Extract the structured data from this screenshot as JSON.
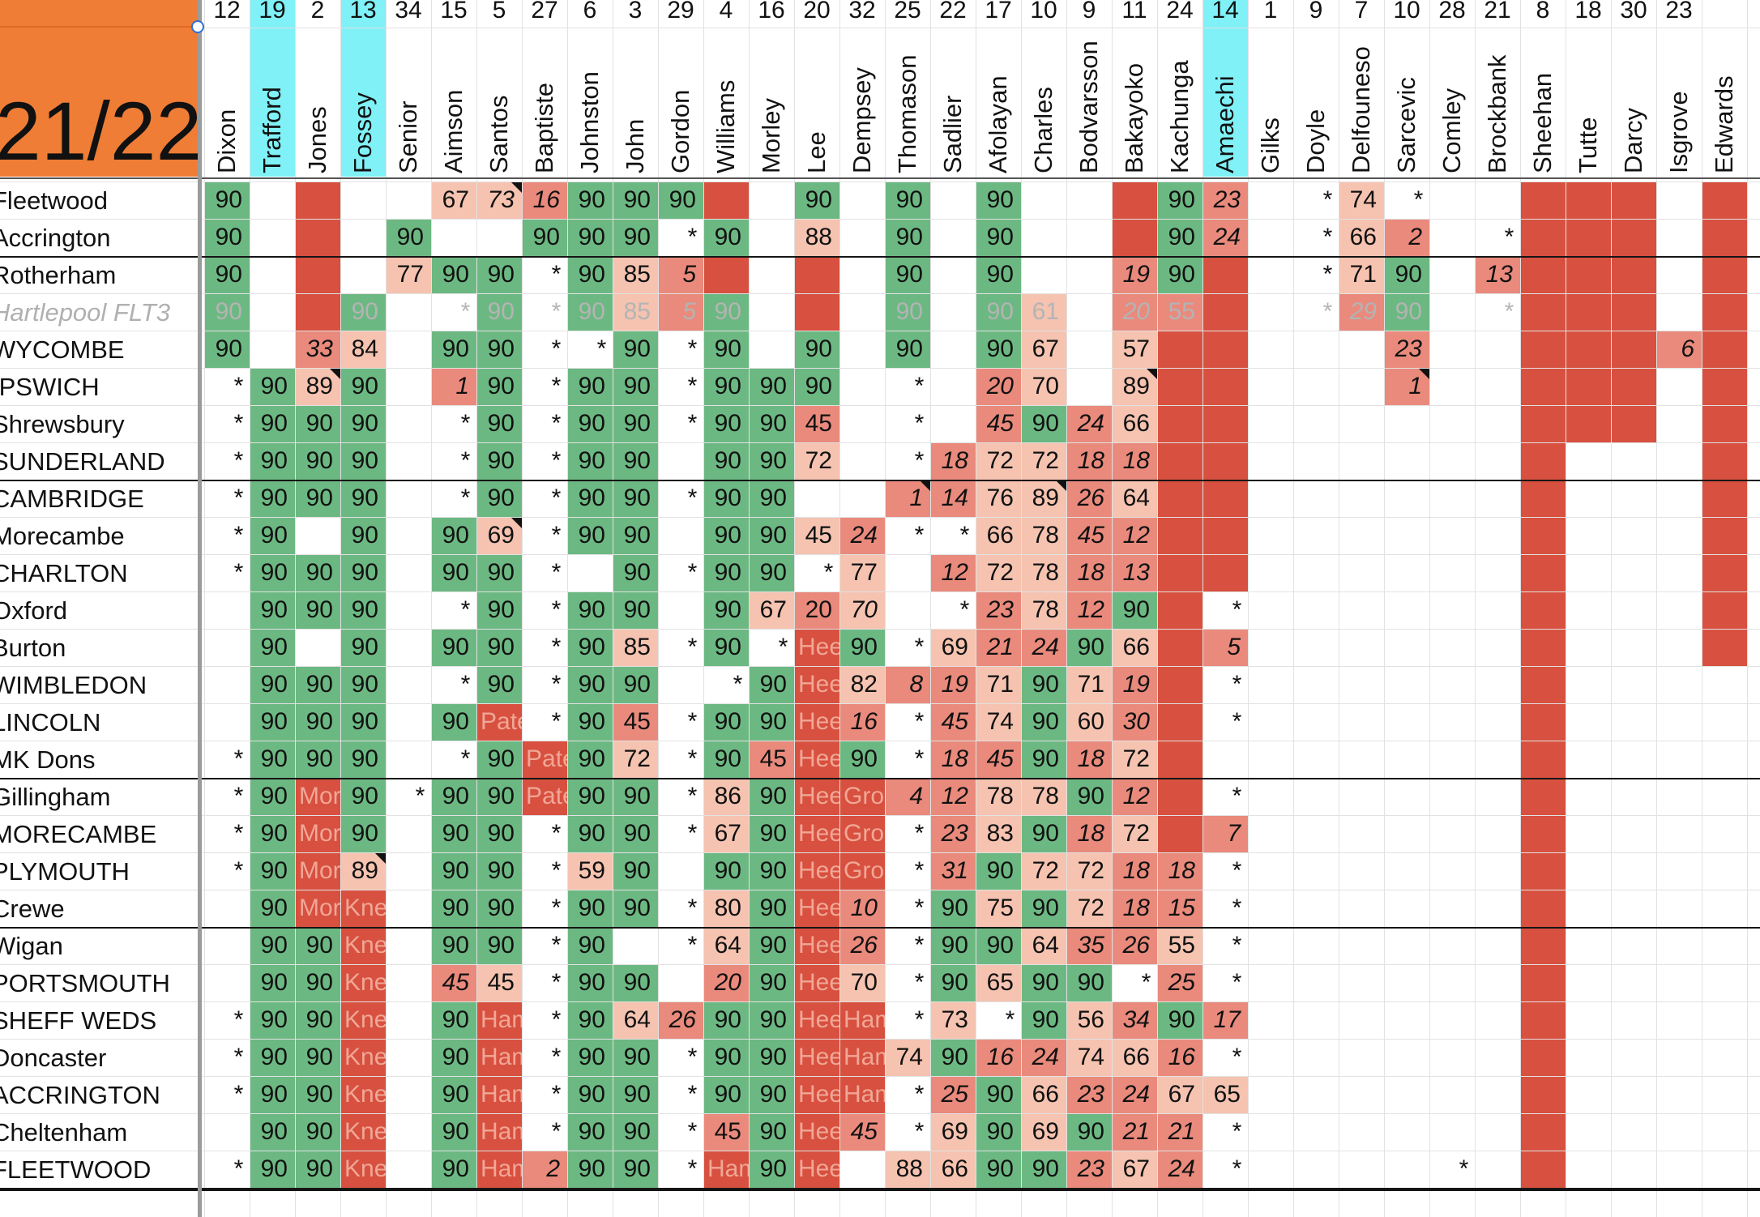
{
  "season_label": "21/22",
  "colors": {
    "green": "#6cb882",
    "red": "#d8503f",
    "pink": "#e98a7c",
    "peach": "#f5c3b0",
    "cream": "#f9e1d3",
    "cyan": "#7ff1f7",
    "orange": "#ef7d35"
  },
  "players": [
    {
      "num": "12",
      "name": "Dixon"
    },
    {
      "num": "19",
      "name": "Trafford"
    },
    {
      "num": "2",
      "name": "Jones"
    },
    {
      "num": "13",
      "name": "Fossey"
    },
    {
      "num": "34",
      "name": "Senior"
    },
    {
      "num": "15",
      "name": "Aimson"
    },
    {
      "num": "5",
      "name": "Santos"
    },
    {
      "num": "27",
      "name": "Baptiste"
    },
    {
      "num": "6",
      "name": "Johnston"
    },
    {
      "num": "3",
      "name": "John"
    },
    {
      "num": "29",
      "name": "Gordon"
    },
    {
      "num": "4",
      "name": "Williams"
    },
    {
      "num": "16",
      "name": "Morley"
    },
    {
      "num": "20",
      "name": "Lee"
    },
    {
      "num": "32",
      "name": "Dempsey"
    },
    {
      "num": "25",
      "name": "Thomason"
    },
    {
      "num": "22",
      "name": "Sadlier"
    },
    {
      "num": "17",
      "name": "Afolayan"
    },
    {
      "num": "10",
      "name": "Charles"
    },
    {
      "num": "9",
      "name": "Bodvarsson"
    },
    {
      "num": "11",
      "name": "Bakayoko"
    },
    {
      "num": "24",
      "name": "Kachunga"
    },
    {
      "num": "14",
      "name": "Amaechi"
    },
    {
      "num": "1",
      "name": "Gilks"
    },
    {
      "num": "9",
      "name": "Doyle"
    },
    {
      "num": "7",
      "name": "Delfouneso"
    },
    {
      "num": "10",
      "name": "Sarcevic"
    },
    {
      "num": "28",
      "name": "Comley"
    },
    {
      "num": "21",
      "name": "Brockbank"
    },
    {
      "num": "8",
      "name": "Sheehan"
    },
    {
      "num": "18",
      "name": "Tutte"
    },
    {
      "num": "30",
      "name": "Darcy"
    },
    {
      "num": "23",
      "name": "Isgrove"
    },
    {
      "num": "",
      "name": "Edwards"
    }
  ],
  "highlighted_columns": [
    1,
    3,
    22
  ],
  "opponents": [
    "Fleetwood",
    "Accrington",
    "Rotherham",
    "Hartlepool FLT3",
    "WYCOMBE",
    "IPSWICH",
    "Shrewsbury",
    "SUNDERLAND",
    "CAMBRIDGE",
    "Morecambe",
    "CHARLTON",
    "Oxford",
    "Burton",
    "WIMBLEDON",
    "LINCOLN",
    "MK Dons",
    "Gillingham",
    "MORECAMBE",
    "PLYMOUTH",
    "Crewe",
    "Wigan",
    "PORTSMOUTH",
    "SHEFF WEDS",
    "Doncaster",
    "ACCRINGTON",
    "Cheltenham",
    "FLEETWOOD"
  ],
  "grayed_rows": [
    3
  ],
  "rows": [
    [
      "G:90",
      "",
      "R",
      "",
      "",
      "C:67",
      "C:73:it:tri",
      "P:16:it",
      "G:90",
      "G:90",
      "G:90",
      "R",
      "",
      "G:90",
      "",
      "G:90",
      "",
      "G:90",
      "",
      "",
      "R",
      "G:90",
      "P:23:it",
      "",
      "*:it",
      "C:74",
      "*:it",
      "",
      "",
      "R",
      "R",
      "R",
      "",
      "R",
      ""
    ],
    [
      "G:90",
      "",
      "R",
      "",
      "G:90",
      "",
      "",
      "G:90",
      "G:90",
      "G:90",
      "*:it",
      "G:90",
      "",
      "C:88",
      "",
      "G:90",
      "",
      "G:90",
      "",
      "",
      "R",
      "G:90",
      "P:24:it",
      "",
      "*:it",
      "C:66",
      "P:2:it",
      "",
      "*:it",
      "R",
      "R",
      "R",
      "",
      "R",
      ""
    ],
    [
      "G:90",
      "",
      "R",
      "",
      "C:77",
      "G:90",
      "G:90",
      "*:it",
      "G:90",
      "C:85",
      "P:5:it",
      "R",
      "",
      "R",
      "",
      "G:90",
      "",
      "G:90",
      "",
      "",
      "P:19:it",
      "G:90",
      "R",
      "",
      "*:it",
      "C:71",
      "G:90",
      "",
      "P:13:it",
      "R",
      "R",
      "R",
      "",
      "R",
      ""
    ],
    [
      "G:90",
      "",
      "R",
      "G:90",
      "",
      "*:it",
      "G:90",
      "*:it",
      "G:90",
      "C:85",
      "P:5:it",
      "G:90",
      "",
      "R",
      "",
      "G:90",
      "",
      "G:90",
      "C:61",
      "",
      "P:20:it",
      "P:55",
      "R",
      "",
      "*:it",
      "P:29:it",
      "G:90",
      "",
      "*:it",
      "R",
      "R",
      "R",
      "",
      "R",
      ""
    ],
    [
      "G:90",
      "",
      "P:33:it",
      "C:84",
      "",
      "G:90",
      "G:90",
      "*:it",
      "*:it",
      "G:90",
      "*:it",
      "G:90",
      "",
      "G:90",
      "",
      "G:90",
      "",
      "G:90",
      "C:67",
      "",
      "C:57",
      "R",
      "R",
      "",
      "",
      "",
      "P:23:it",
      "",
      "",
      "R",
      "R",
      "R",
      "P:6:it",
      "R",
      ""
    ],
    [
      "*:it",
      "G:90",
      "C:89:tri",
      "G:90",
      "",
      "P:1:it",
      "G:90",
      "*:it",
      "G:90",
      "G:90",
      "*:it",
      "G:90",
      "G:90",
      "G:90",
      "",
      "*:it",
      "",
      "P:20:it",
      "C:70",
      "",
      "C:89:tri",
      "R",
      "R",
      "",
      "",
      "",
      "P:1:it:tri",
      "",
      "",
      "R",
      "R",
      "R",
      "",
      "R",
      ""
    ],
    [
      "*:it",
      "G:90",
      "G:90",
      "G:90",
      "",
      "*:it",
      "G:90",
      "*:it",
      "G:90",
      "G:90",
      "*:it",
      "G:90",
      "G:90",
      "P:45",
      "",
      "*:it",
      "",
      "P:45:it",
      "G:90",
      "P:24:it",
      "C:66",
      "R",
      "R",
      "",
      "",
      "",
      "",
      "",
      "",
      "R",
      "R",
      "R",
      "",
      "R",
      ""
    ],
    [
      "*:it",
      "G:90",
      "G:90",
      "G:90",
      "",
      "*:it",
      "G:90",
      "*:it",
      "G:90",
      "G:90",
      "",
      "G:90",
      "G:90",
      "C:72",
      "",
      "*:it",
      "P:18:it",
      "C:72",
      "C:72",
      "P:18:it",
      "P:18:it",
      "R",
      "R",
      "",
      "",
      "",
      "",
      "",
      "",
      "R",
      "",
      "",
      "",
      "R",
      ""
    ],
    [
      "*:it",
      "G:90",
      "G:90",
      "G:90",
      "",
      "*:it",
      "G:90",
      "*:it",
      "G:90",
      "G:90",
      "*:it",
      "G:90",
      "G:90",
      "",
      "",
      "P:1:it:tri",
      "P:14:it",
      "C:76",
      "C:89:tri",
      "P:26:it",
      "C:64",
      "R",
      "R",
      "",
      "",
      "",
      "",
      "",
      "",
      "R",
      "",
      "",
      "",
      "R",
      ""
    ],
    [
      "*:it",
      "G:90",
      "",
      "G:90",
      "",
      "G:90",
      "C:69:tri",
      "*:it",
      "G:90",
      "G:90",
      "",
      "G:90",
      "G:90",
      "C:45",
      "P:24:it",
      "*:it",
      "*:it",
      "C:66",
      "C:78",
      "P:45:it",
      "P:12:it",
      "R",
      "R",
      "",
      "",
      "",
      "",
      "",
      "",
      "R",
      "",
      "",
      "",
      "R",
      ""
    ],
    [
      "*:it",
      "G:90",
      "G:90",
      "G:90",
      "",
      "G:90",
      "G:90",
      "*:it",
      "",
      "G:90",
      "*:it",
      "G:90",
      "G:90",
      "*:it",
      "C:77",
      "",
      "P:12:it",
      "C:72",
      "C:78",
      "P:18:it",
      "P:13:it",
      "R",
      "R",
      "",
      "",
      "",
      "",
      "",
      "",
      "R",
      "",
      "",
      "",
      "R",
      ""
    ],
    [
      "",
      "G:90",
      "G:90",
      "G:90",
      "",
      "*:it",
      "G:90",
      "*:it",
      "G:90",
      "G:90",
      "",
      "G:90",
      "C:67",
      "P:20",
      "C:70:it",
      "",
      "*:it",
      "P:23:it",
      "C:78",
      "P:12:it",
      "G:90",
      "R",
      "*:it",
      "",
      "",
      "",
      "",
      "",
      "",
      "R",
      "",
      "",
      "",
      "R",
      ""
    ],
    [
      "",
      "G:90",
      "",
      "G:90",
      "",
      "G:90",
      "G:90",
      "*:it",
      "G:90",
      "C:85",
      "*:it",
      "G:90",
      "*:it",
      "R:Heel",
      "G:90",
      "*:it",
      "C:69",
      "P:21:it",
      "P:24:it",
      "G:90",
      "C:66",
      "R",
      "P:5:it",
      "",
      "",
      "",
      "",
      "",
      "",
      "R",
      "",
      "",
      "",
      "R",
      ""
    ],
    [
      "",
      "G:90",
      "G:90",
      "G:90",
      "",
      "*:it",
      "G:90",
      "*:it",
      "G:90",
      "G:90",
      "",
      "*:it",
      "G:90",
      "R:Heel",
      "C:82",
      "P:8:it",
      "P:19:it",
      "C:71",
      "G:90",
      "C:71",
      "P:19:it",
      "R",
      "*:it",
      "",
      "",
      "",
      "",
      "",
      "",
      "R",
      "",
      "",
      "",
      "",
      ""
    ],
    [
      "",
      "G:90",
      "G:90",
      "G:90",
      "",
      "G:90",
      "R:Patella",
      "*:it",
      "G:90",
      "P:45",
      "*:it",
      "G:90",
      "G:90",
      "R:Heel",
      "P:16:it",
      "*:it",
      "P:45:it",
      "C:74",
      "G:90",
      "C:60",
      "P:30:it",
      "R",
      "*:it",
      "",
      "",
      "",
      "",
      "",
      "",
      "R",
      "",
      "",
      "",
      "",
      ""
    ],
    [
      "*:it",
      "G:90",
      "G:90",
      "G:90",
      "",
      "*:it",
      "G:90",
      "R:Patella",
      "G:90",
      "C:72",
      "*:it",
      "G:90",
      "P:45",
      "R:Heel",
      "G:90",
      "*:it",
      "P:18:it",
      "P:45:it",
      "G:90",
      "P:18:it",
      "C:72",
      "R",
      "",
      "",
      "",
      "",
      "",
      "",
      "",
      "R",
      "",
      "",
      "",
      "",
      ""
    ],
    [
      "*:it",
      "G:90",
      "R:Morley",
      "G:90",
      "*:it",
      "G:90",
      "G:90",
      "R:Patella",
      "G:90",
      "G:90",
      "*:it",
      "C:86",
      "G:90",
      "R:Heel",
      "R:Groin",
      "P:4:it",
      "P:12:it",
      "C:78",
      "C:78",
      "G:90",
      "P:12:it",
      "R",
      "*:it",
      "",
      "",
      "",
      "",
      "",
      "",
      "R",
      "",
      "",
      "",
      "",
      ""
    ],
    [
      "*:it",
      "G:90",
      "R:Morley",
      "G:90",
      "",
      "G:90",
      "G:90",
      "*:it",
      "G:90",
      "G:90",
      "*:it",
      "C:67",
      "G:90",
      "R:Heel",
      "R:Groin",
      "*:it",
      "P:23:it",
      "C:83",
      "G:90",
      "P:18:it",
      "C:72",
      "R",
      "P:7:it",
      "",
      "",
      "",
      "",
      "",
      "",
      "R",
      "",
      "",
      "",
      "",
      ""
    ],
    [
      "*:it",
      "G:90",
      "R:Morley",
      "C:89:tri",
      "",
      "G:90",
      "G:90",
      "*:it",
      "C:59",
      "G:90",
      "",
      "G:90",
      "G:90",
      "R:Heel",
      "R:Groin",
      "*:it",
      "P:31:it",
      "G:90",
      "C:72",
      "C:72",
      "P:18:it",
      "P:18:it",
      "*:it",
      "",
      "",
      "",
      "",
      "",
      "",
      "R",
      "",
      "",
      "",
      "",
      ""
    ],
    [
      "",
      "G:90",
      "R:Morley",
      "R:Knee",
      "",
      "G:90",
      "G:90",
      "*:it",
      "G:90",
      "G:90",
      "*:it",
      "C:80",
      "G:90",
      "R:Heel",
      "P:10:it",
      "*:it",
      "G:90",
      "C:75",
      "G:90",
      "C:72",
      "P:18:it",
      "P:15:it",
      "*:it",
      "",
      "",
      "",
      "",
      "",
      "",
      "R",
      "",
      "",
      "",
      "",
      ""
    ],
    [
      "",
      "G:90",
      "G:90",
      "R:Knee",
      "",
      "G:90",
      "G:90",
      "*:it",
      "G:90",
      "",
      "*:it",
      "C:64",
      "G:90",
      "R:Heel",
      "P:26:it",
      "*:it",
      "G:90",
      "G:90",
      "C:64",
      "P:35:it",
      "P:26:it",
      "C:55",
      "*:it",
      "",
      "",
      "",
      "",
      "",
      "",
      "R",
      "",
      "",
      "",
      "",
      ""
    ],
    [
      "",
      "G:90",
      "G:90",
      "R:Knee",
      "",
      "P:45:it",
      "C:45",
      "*:it",
      "G:90",
      "G:90",
      "",
      "P:20:it",
      "G:90",
      "R:Heel",
      "C:70",
      "*:it",
      "G:90",
      "C:65",
      "G:90",
      "G:90",
      "*:it",
      "P:25:it",
      "*:it",
      "",
      "",
      "",
      "",
      "",
      "",
      "R",
      "",
      "",
      "",
      "",
      ""
    ],
    [
      "*:it",
      "G:90",
      "G:90",
      "R:Knee",
      "",
      "G:90",
      "R:Hamstring",
      "*:it",
      "G:90",
      "C:64",
      "P:26:it",
      "G:90",
      "G:90",
      "R:Heel",
      "R:Hamstring",
      "*:it",
      "C:73",
      "*:it",
      "G:90",
      "C:56",
      "P:34:it",
      "G:90",
      "P:17:it",
      "",
      "",
      "",
      "",
      "",
      "",
      "R",
      "",
      "",
      "",
      "",
      ""
    ],
    [
      "*:it",
      "G:90",
      "G:90",
      "R:Knee",
      "",
      "G:90",
      "R:Hamstring",
      "*:it",
      "G:90",
      "G:90",
      "*:it",
      "G:90",
      "G:90",
      "R:Heel",
      "R:Hamstring",
      "C:74",
      "G:90",
      "P:16:it",
      "P:24:it",
      "C:74",
      "C:66",
      "P:16:it",
      "*:it",
      "",
      "",
      "",
      "",
      "",
      "",
      "R",
      "",
      "",
      "",
      "",
      ""
    ],
    [
      "*:it",
      "G:90",
      "G:90",
      "R:Knee",
      "",
      "G:90",
      "R:Hamstring",
      "*:it",
      "G:90",
      "G:90",
      "*:it",
      "G:90",
      "G:90",
      "R:Heel",
      "R:Hamstring",
      "*:it",
      "P:25:it",
      "G:90",
      "C:66",
      "P:23:it",
      "P:24:it",
      "C:67",
      "C:65",
      "",
      "",
      "",
      "",
      "",
      "",
      "R",
      "",
      "",
      "",
      "",
      ""
    ],
    [
      "",
      "G:90",
      "G:90",
      "R:Knee",
      "",
      "G:90",
      "R:Hamstring",
      "*:it",
      "G:90",
      "G:90",
      "*:it",
      "P:45",
      "G:90",
      "R:Heel",
      "P:45:it",
      "*:it",
      "C:69",
      "G:90",
      "C:69",
      "G:90",
      "P:21:it",
      "P:21:it",
      "*:it",
      "",
      "",
      "",
      "",
      "",
      "",
      "R",
      "",
      "",
      "",
      "",
      ""
    ],
    [
      "*:it",
      "G:90",
      "G:90",
      "R:Knee",
      "",
      "G:90",
      "R:Hamstring",
      "P:2:it",
      "G:90",
      "G:90",
      "*:it",
      "R:Hamstring",
      "G:90",
      "R:Heel",
      "",
      "C:88",
      "C:66",
      "G:90",
      "G:90",
      "P:23:it",
      "C:67",
      "P:24:it",
      "*:it",
      "",
      "",
      "",
      "",
      "*:it",
      "",
      "R",
      "",
      "",
      "",
      "",
      ""
    ]
  ]
}
